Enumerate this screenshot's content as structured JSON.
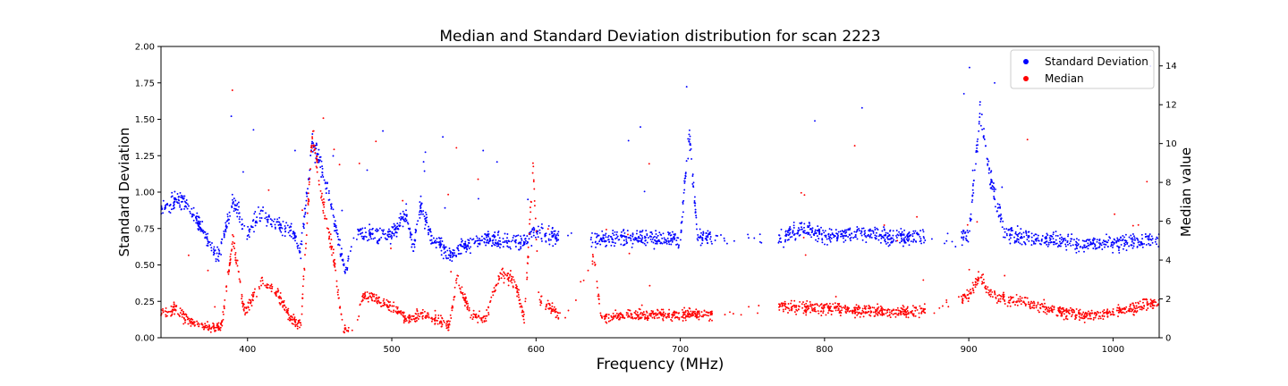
{
  "chart_data": {
    "type": "scatter",
    "title": "Median and Standard Deviation distribution for scan 2223",
    "xlabel": "Frequency (MHz)",
    "ylabel_left": "Standard Deviation",
    "ylabel_right": "Median value",
    "xlim": [
      340,
      1032
    ],
    "ylim_left": [
      0,
      2.0
    ],
    "ylim_right": [
      0,
      15
    ],
    "x_ticks": [
      400,
      500,
      600,
      700,
      800,
      900,
      1000
    ],
    "y_left_ticks": [
      "0.00",
      "0.25",
      "0.50",
      "0.75",
      "1.00",
      "1.25",
      "1.50",
      "1.75",
      "2.00"
    ],
    "y_right_ticks": [
      0,
      2,
      4,
      6,
      8,
      10,
      12,
      14
    ],
    "grid": false,
    "legend_position": "top-right",
    "series": [
      {
        "name": "Standard Deviation",
        "axis": "left",
        "color": "#0000ff",
        "profile": [
          [
            340,
            0.9
          ],
          [
            355,
            0.95
          ],
          [
            368,
            0.75
          ],
          [
            380,
            0.55
          ],
          [
            390,
            0.95
          ],
          [
            400,
            0.72
          ],
          [
            410,
            0.85
          ],
          [
            420,
            0.78
          ],
          [
            430,
            0.75
          ],
          [
            437,
            0.6
          ],
          [
            445,
            1.35
          ],
          [
            452,
            1.15
          ],
          [
            460,
            0.8
          ],
          [
            468,
            0.45
          ],
          [
            475,
            0.72
          ],
          [
            490,
            0.7
          ],
          [
            500,
            0.7
          ],
          [
            510,
            0.85
          ],
          [
            515,
            0.62
          ],
          [
            520,
            0.9
          ],
          [
            528,
            0.68
          ],
          [
            540,
            0.58
          ],
          [
            555,
            0.65
          ],
          [
            565,
            0.68
          ],
          [
            590,
            0.65
          ],
          [
            600,
            0.72
          ],
          [
            620,
            0.68
          ],
          [
            640,
            0.68
          ],
          [
            660,
            0.68
          ],
          [
            700,
            0.68
          ],
          [
            706,
            1.4
          ],
          [
            712,
            0.7
          ],
          [
            720,
            0.68
          ],
          [
            770,
            0.69
          ],
          [
            785,
            0.75
          ],
          [
            800,
            0.7
          ],
          [
            830,
            0.71
          ],
          [
            850,
            0.69
          ],
          [
            870,
            0.69
          ],
          [
            900,
            0.69
          ],
          [
            908,
            1.55
          ],
          [
            915,
            1.1
          ],
          [
            925,
            0.72
          ],
          [
            950,
            0.68
          ],
          [
            980,
            0.64
          ],
          [
            1000,
            0.65
          ],
          [
            1030,
            0.68
          ]
        ]
      },
      {
        "name": "Median",
        "axis": "right",
        "color": "#ff0000",
        "profile": [
          [
            340,
            1.2
          ],
          [
            350,
            1.5
          ],
          [
            360,
            0.8
          ],
          [
            372,
            0.5
          ],
          [
            382,
            0.6
          ],
          [
            390,
            5.2
          ],
          [
            398,
            1.2
          ],
          [
            410,
            3.0
          ],
          [
            420,
            2.4
          ],
          [
            430,
            1.0
          ],
          [
            437,
            0.6
          ],
          [
            445,
            10.5
          ],
          [
            452,
            7.0
          ],
          [
            460,
            4.0
          ],
          [
            466,
            0.4
          ],
          [
            475,
            0.5
          ],
          [
            480,
            2.2
          ],
          [
            490,
            1.9
          ],
          [
            500,
            1.6
          ],
          [
            510,
            1.0
          ],
          [
            520,
            1.2
          ],
          [
            530,
            1.0
          ],
          [
            540,
            0.6
          ],
          [
            545,
            3.0
          ],
          [
            555,
            1.2
          ],
          [
            565,
            1.0
          ],
          [
            575,
            3.2
          ],
          [
            585,
            3.0
          ],
          [
            592,
            1.0
          ],
          [
            598,
            9.0
          ],
          [
            602,
            2.0
          ],
          [
            620,
            1.0
          ],
          [
            640,
            4.2
          ],
          [
            645,
            1.1
          ],
          [
            700,
            1.2
          ],
          [
            720,
            1.2
          ],
          [
            770,
            1.6
          ],
          [
            800,
            1.5
          ],
          [
            830,
            1.4
          ],
          [
            850,
            1.3
          ],
          [
            870,
            1.4
          ],
          [
            900,
            2.2
          ],
          [
            908,
            3.2
          ],
          [
            915,
            2.2
          ],
          [
            950,
            1.6
          ],
          [
            980,
            1.1
          ],
          [
            1000,
            1.3
          ],
          [
            1030,
            1.8
          ]
        ]
      }
    ],
    "gaps": [
      [
        470,
        476
      ],
      [
        616,
        638
      ],
      [
        722,
        768
      ],
      [
        870,
        895
      ]
    ]
  }
}
